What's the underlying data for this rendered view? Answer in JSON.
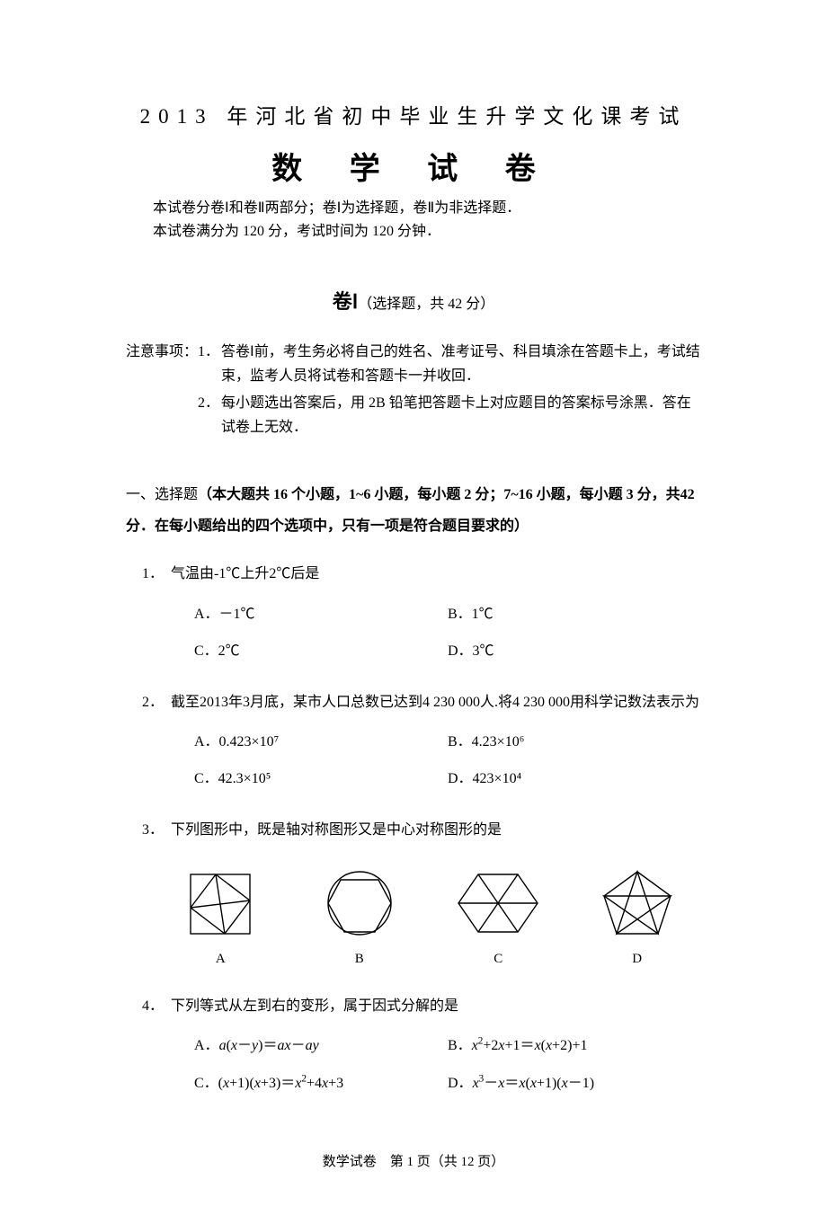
{
  "header": {
    "supertitle": "2013 年河北省初中毕业生升学文化课考试",
    "title": "数 学 试 卷",
    "intro_line1": "本试卷分卷Ⅰ和卷Ⅱ两部分；卷Ⅰ为选择题，卷Ⅱ为非选择题．",
    "intro_line2": "本试卷满分为 120 分，考试时间为 120 分钟．"
  },
  "section_heading": {
    "bold": "卷Ⅰ",
    "rest": "（选择题，共 42 分）"
  },
  "notes": {
    "label": "注意事项：",
    "items": [
      {
        "num": "1．",
        "text": "答卷Ⅰ前，考生务必将自己的姓名、准考证号、科目填涂在答题卡上，考试结束，监考人员将试卷和答题卡一并收回．"
      },
      {
        "num": "2．",
        "text": "每小题选出答案后，用 2B 铅笔把答题卡上对应题目的答案标号涂黑．答在试卷上无效．"
      }
    ]
  },
  "section_desc": {
    "lead": "一、选择题",
    "bold": "（本大题共 16 个小题，1~6 小题，每小题 2 分；7~16 小题，每小题 3 分，共42 分．在每小题给出的四个选项中，只有一项是符合题目要求的）"
  },
  "questions": {
    "q1": {
      "num": "1．",
      "text": "气温由-1℃上升2℃后是",
      "options": {
        "A": "A．－1℃",
        "B": "B．1℃",
        "C": "C．2℃",
        "D": "D．3℃"
      }
    },
    "q2": {
      "num": "2．",
      "text": "截至2013年3月底，某市人口总数已达到4 230 000人.将4 230 000用科学记数法表示为",
      "options": {
        "A": "A．0.423×10⁷",
        "B": "B．4.23×10⁶",
        "C": "C．42.3×10⁵",
        "D": "D．423×10⁴"
      }
    },
    "q3": {
      "num": "3．",
      "text": "下列图形中，既是轴对称图形又是中心对称图形的是",
      "labels": {
        "A": "A",
        "B": "B",
        "C": "C",
        "D": "D"
      },
      "figures": {
        "stroke": "#000000",
        "stroke_width": 1.4,
        "fill": "none"
      }
    },
    "q4": {
      "num": "4．",
      "text": "下列等式从左到右的变形，属于因式分解的是",
      "options": {
        "A_html": "A．<span class=\"italic\">a</span>(<span class=\"italic\">x</span>－<span class=\"italic\">y</span>)＝<span class=\"italic\">ax</span>－<span class=\"italic\">ay</span>",
        "B_html": "B．<span class=\"italic\">x</span><sup>2</sup>+2<span class=\"italic\">x</span>+1＝<span class=\"italic\">x</span>(<span class=\"italic\">x</span>+2)+1",
        "C_html": "C．(<span class=\"italic\">x</span>+1)(<span class=\"italic\">x</span>+3)＝<span class=\"italic\">x</span><sup>2</sup>+4<span class=\"italic\">x</span>+3",
        "D_html": "D．<span class=\"italic\">x</span><sup>3</sup>－<span class=\"italic\">x</span>＝<span class=\"italic\">x</span>(<span class=\"italic\">x</span>+1)(<span class=\"italic\">x</span>－1)"
      }
    }
  },
  "footer": "数学试卷　第 1 页（共 12 页）"
}
